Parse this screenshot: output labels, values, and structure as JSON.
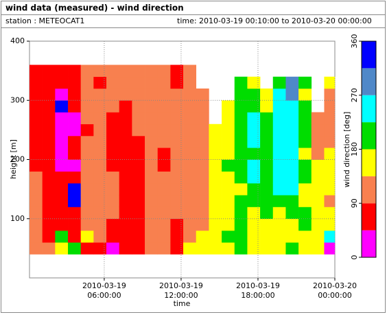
{
  "chart_data": {
    "type": "heatmap",
    "title": "wind data (measured) - wind direction",
    "station": "station : METEOCAT1",
    "time_range": "time: 2010-03-19 00:10:00 to 2010-03-20 00:00:00",
    "xlabel": "time",
    "ylabel": "height [m]",
    "zlabel": "wind direction [deg]",
    "xlim": [
      "2010-03-19 00:10:00",
      "2010-03-20 00:00:00"
    ],
    "xticks": [
      "2010-03-19 06:00:00",
      "2010-03-19 12:00:00",
      "2010-03-19 18:00:00",
      "2010-03-20 00:00:00"
    ],
    "ylim": [
      0,
      400
    ],
    "yticks": [
      100,
      200,
      300,
      400
    ],
    "zlim": [
      0,
      360
    ],
    "zticks": [
      0,
      90,
      180,
      270,
      360
    ],
    "color_bounds": [
      0,
      45,
      90,
      135,
      180,
      225,
      270,
      315,
      360
    ],
    "colors": [
      "#ff00ff",
      "#ff0000",
      "#f8804f",
      "#ffff00",
      "#00dd00",
      "#00ffff",
      "#4f88c8",
      "#0000ff"
    ],
    "grid": true,
    "x": [
      "2010-03-19 00:10:00",
      "2010-03-19 01:10:00",
      "2010-03-19 02:10:00",
      "2010-03-19 03:10:00",
      "2010-03-19 04:10:00",
      "2010-03-19 05:10:00",
      "2010-03-19 06:10:00",
      "2010-03-19 07:10:00",
      "2010-03-19 08:10:00",
      "2010-03-19 09:10:00",
      "2010-03-19 10:10:00",
      "2010-03-19 11:10:00",
      "2010-03-19 12:10:00",
      "2010-03-19 13:10:00",
      "2010-03-19 14:10:00",
      "2010-03-19 15:10:00",
      "2010-03-19 16:10:00",
      "2010-03-19 17:10:00",
      "2010-03-19 18:10:00",
      "2010-03-19 19:10:00",
      "2010-03-19 20:10:00",
      "2010-03-19 21:10:00",
      "2010-03-19 22:10:00",
      "2010-03-19 23:10:00"
    ],
    "y": [
      40,
      60,
      80,
      100,
      120,
      140,
      160,
      180,
      200,
      220,
      240,
      260,
      280,
      300,
      320,
      340
    ],
    "cell_height": 20,
    "z": [
      [
        110,
        110,
        110,
        110,
        110,
        110,
        110,
        70,
        70,
        70,
        70,
        70,
        70,
        70,
        70,
        70
      ],
      [
        110,
        70,
        70,
        70,
        70,
        70,
        70,
        70,
        70,
        70,
        70,
        70,
        70,
        70,
        70,
        70
      ],
      [
        160,
        200,
        70,
        70,
        70,
        70,
        70,
        20,
        20,
        20,
        20,
        20,
        340,
        20,
        70,
        70
      ],
      [
        200,
        70,
        70,
        70,
        340,
        340,
        70,
        20,
        70,
        70,
        20,
        20,
        70,
        70,
        70,
        70
      ],
      [
        70,
        160,
        110,
        110,
        110,
        110,
        110,
        110,
        110,
        110,
        70,
        110,
        110,
        110,
        110,
        110
      ],
      [
        70,
        110,
        110,
        110,
        110,
        110,
        110,
        110,
        110,
        110,
        110,
        110,
        110,
        110,
        70,
        110
      ],
      [
        20,
        70,
        70,
        110,
        110,
        110,
        110,
        70,
        70,
        70,
        70,
        70,
        110,
        110,
        110,
        110
      ],
      [
        70,
        70,
        70,
        70,
        70,
        70,
        70,
        70,
        70,
        70,
        70,
        70,
        70,
        110,
        110,
        110
      ],
      [
        70,
        70,
        70,
        70,
        70,
        70,
        70,
        70,
        70,
        70,
        110,
        110,
        110,
        110,
        110,
        110
      ],
      [
        110,
        110,
        110,
        110,
        110,
        110,
        110,
        110,
        110,
        110,
        110,
        110,
        110,
        110,
        110,
        110
      ],
      [
        110,
        110,
        110,
        110,
        110,
        110,
        110,
        70,
        70,
        110,
        110,
        110,
        110,
        110,
        110,
        110
      ],
      [
        70,
        70,
        70,
        110,
        110,
        110,
        110,
        110,
        110,
        110,
        110,
        110,
        110,
        110,
        70,
        70
      ],
      [
        160,
        110,
        110,
        110,
        110,
        110,
        110,
        110,
        110,
        110,
        110,
        110,
        110,
        110,
        110,
        110
      ],
      [
        160,
        160,
        110,
        110,
        110,
        110,
        110,
        110,
        110,
        110,
        110,
        110,
        110,
        110,
        null,
        null
      ],
      [
        160,
        160,
        160,
        160,
        160,
        160,
        160,
        160,
        160,
        160,
        160,
        null,
        null,
        null,
        null,
        null
      ],
      [
        160,
        200,
        160,
        160,
        160,
        160,
        160,
        200,
        160,
        160,
        160,
        160,
        160,
        null,
        null,
        null
      ],
      [
        200,
        200,
        200,
        200,
        200,
        160,
        200,
        200,
        200,
        200,
        200,
        200,
        200,
        200,
        200,
        null
      ],
      [
        160,
        160,
        160,
        160,
        200,
        200,
        250,
        250,
        200,
        250,
        250,
        250,
        200,
        200,
        160,
        null
      ],
      [
        160,
        160,
        160,
        200,
        200,
        200,
        200,
        200,
        200,
        200,
        200,
        200,
        160,
        160,
        null,
        null
      ],
      [
        160,
        160,
        160,
        160,
        200,
        250,
        250,
        250,
        250,
        250,
        250,
        250,
        250,
        250,
        200,
        null
      ],
      [
        200,
        160,
        160,
        200,
        200,
        250,
        250,
        250,
        250,
        250,
        250,
        250,
        250,
        290,
        290,
        null
      ],
      [
        160,
        160,
        200,
        200,
        160,
        160,
        200,
        200,
        160,
        200,
        200,
        200,
        200,
        160,
        200,
        null
      ],
      [
        160,
        160,
        160,
        160,
        160,
        160,
        160,
        160,
        110,
        110,
        110,
        110,
        null,
        null,
        null,
        null
      ],
      [
        20,
        250,
        160,
        160,
        110,
        160,
        160,
        160,
        160,
        110,
        110,
        110,
        110,
        110,
        160,
        null
      ]
    ]
  }
}
